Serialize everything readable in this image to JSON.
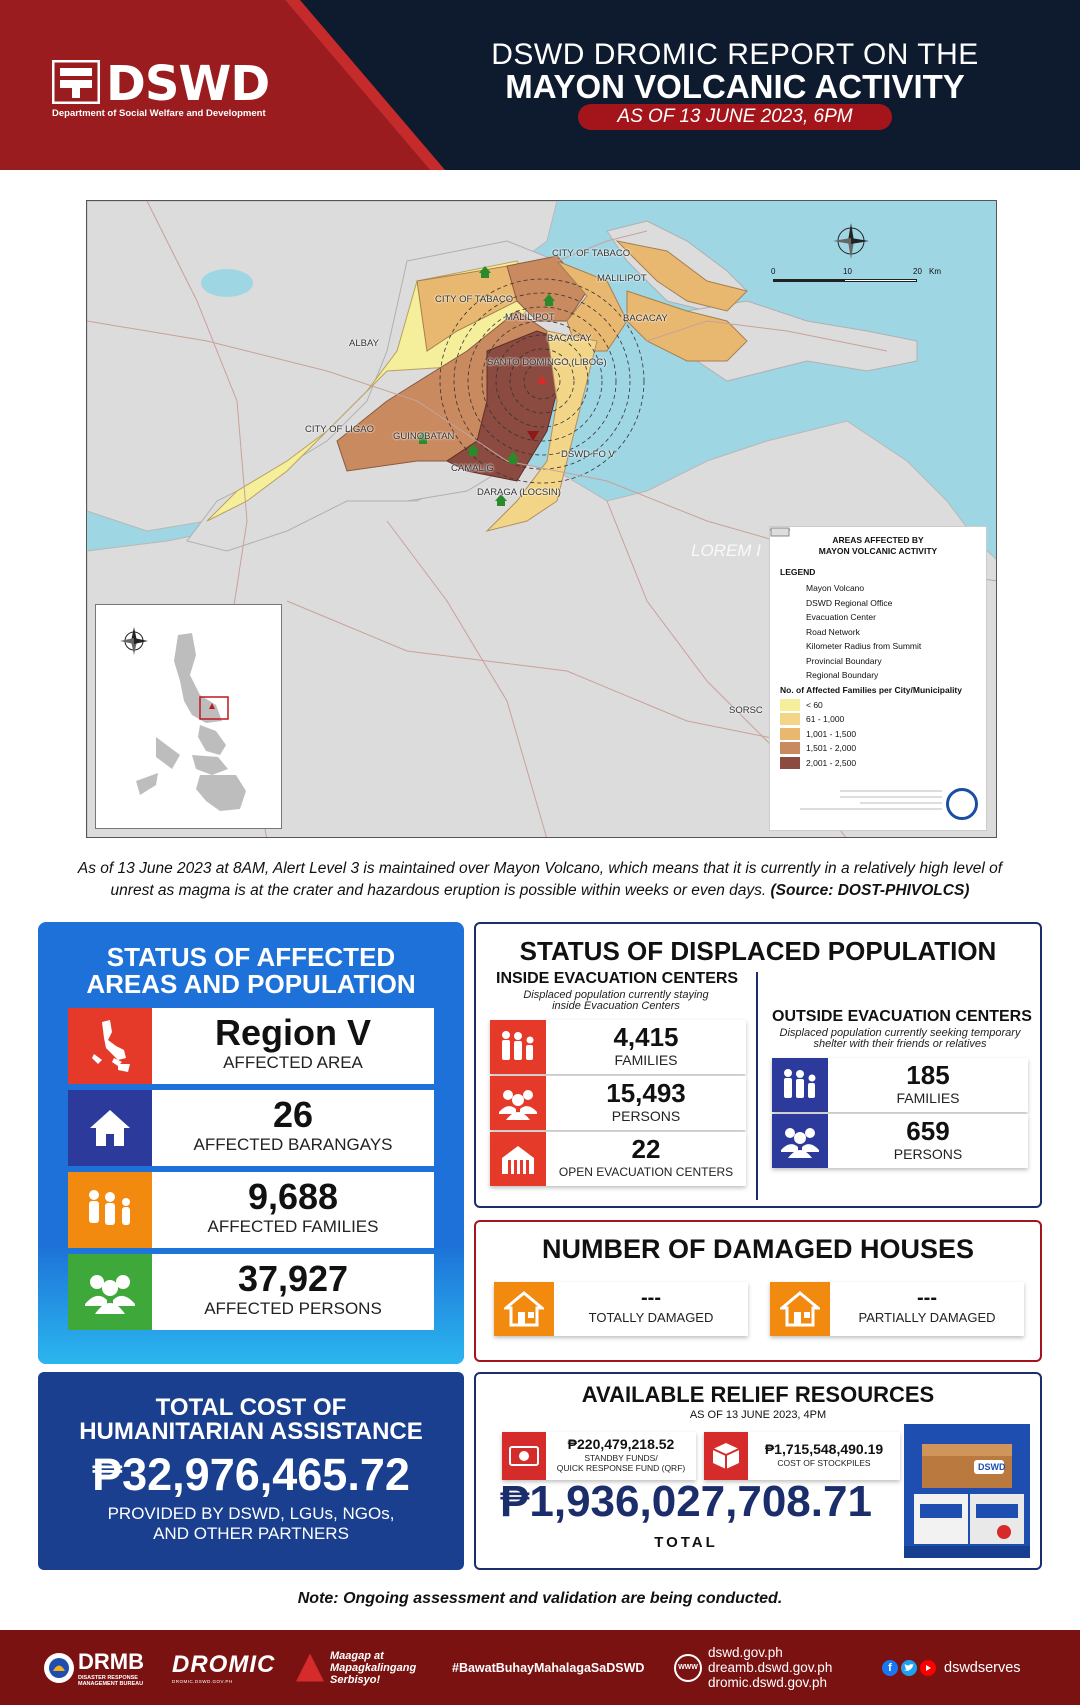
{
  "header": {
    "logo_text": "DSWD",
    "logo_subtitle": "Department of Social Welfare and Development",
    "title_line1": "DSWD DROMIC REPORT ON THE",
    "title_line2": "MAYON VOLCANIC ACTIVITY",
    "as_of": "AS OF 13 JUNE 2023, 6PM"
  },
  "map": {
    "place_labels": {
      "tabaco_north": "CITY OF TABACO",
      "malilipot_north": "MALILIPOT",
      "bacacay_east": "BACACAY",
      "tabaco": "CITY OF TABACO",
      "malilipot": "MALILIPOT",
      "bacacay": "BACACAY",
      "santo_domingo": "SANTO DOMINGO (LIBOG)",
      "albay": "ALBAY",
      "ligao": "CITY OF LIGAO",
      "guinobatan": "GUINOBATAN",
      "camalig": "CAMALIG",
      "daraga": "DARAGA (LOCSIN)",
      "dswd_fo": "DSWD FO V",
      "sorsogon": "SORSC",
      "watermark": "LOREM I"
    },
    "scale": {
      "ticks": [
        "0",
        "10",
        "20"
      ],
      "unit": "Km"
    },
    "legend": {
      "title_line1": "AREAS AFFECTED BY",
      "title_line2": "MAYON VOLCANIC ACTIVITY",
      "heading": "LEGEND",
      "items": [
        "Mayon Volcano",
        "DSWD Regional Office",
        "Evacuation Center",
        "Road Network",
        "Kilometer Radius from Summit",
        "Provincial Boundary",
        "Regional Boundary"
      ],
      "families_heading": "No. of Affected Families per City/Municipality",
      "ranges": [
        "< 60",
        "61 - 1,000",
        "1,001 - 1,500",
        "1,501 - 2,000",
        "2,001 - 2,500"
      ],
      "range_colors": [
        "#f5ee9a",
        "#f3d588",
        "#e9b870",
        "#c98a5f",
        "#8c4b40"
      ]
    }
  },
  "advisory": {
    "text": "As of 13 June 2023 at 8AM, Alert Level 3 is maintained over Mayon Volcano, which means that it is currently in a relatively high level of unrest as magma is at the crater and hazardous eruption is possible within weeks or even days.",
    "source": "(Source: DOST-PHIVOLCS)"
  },
  "affected": {
    "title_line1": "STATUS OF AFFECTED",
    "title_line2": "AREAS AND POPULATION",
    "rows": [
      {
        "value": "Region V",
        "label": "AFFECTED AREA",
        "icon": "philippines-map-icon",
        "color": "#e53a2a"
      },
      {
        "value": "26",
        "label": "AFFECTED BARANGAYS",
        "icon": "house-icon",
        "color": "#2c3a9c"
      },
      {
        "value": "9,688",
        "label": "AFFECTED FAMILIES",
        "icon": "family-icon",
        "color": "#f28a10"
      },
      {
        "value": "37,927",
        "label": "AFFECTED PERSONS",
        "icon": "persons-icon",
        "color": "#3fa83a"
      }
    ]
  },
  "displaced": {
    "title": "STATUS OF DISPLACED POPULATION",
    "inside": {
      "heading": "INSIDE EVACUATION CENTERS",
      "desc_line1": "Displaced population currently staying",
      "desc_line2": "inside Evacuation Centers",
      "stats": [
        {
          "value": "4,415",
          "label": "FAMILIES"
        },
        {
          "value": "15,493",
          "label": "PERSONS"
        },
        {
          "value": "22",
          "label": "OPEN EVACUATION CENTERS"
        }
      ]
    },
    "outside": {
      "heading": "OUTSIDE EVACUATION CENTERS",
      "desc_line1": "Displaced population currently seeking temporary",
      "desc_line2": "shelter with their friends or relatives",
      "stats": [
        {
          "value": "185",
          "label": "FAMILIES"
        },
        {
          "value": "659",
          "label": "PERSONS"
        }
      ]
    }
  },
  "damaged": {
    "title": "NUMBER OF DAMAGED HOUSES",
    "totally": {
      "value": "---",
      "label": "TOTALLY DAMAGED"
    },
    "partially": {
      "value": "---",
      "label": "PARTIALLY DAMAGED"
    }
  },
  "cost": {
    "title_line1": "TOTAL COST OF",
    "title_line2": "HUMANITARIAN ASSISTANCE",
    "value": "₱32,976,465.72",
    "sub_line1": "PROVIDED BY DSWD, LGUs, NGOs,",
    "sub_line2": "AND OTHER PARTNERS"
  },
  "relief": {
    "title": "AVAILABLE RELIEF RESOURCES",
    "as_of": "AS OF 13 JUNE 2023, 4PM",
    "standby": {
      "value": "₱220,479,218.52",
      "label_line1": "STANDBY FUNDS/",
      "label_line2": "QUICK RESPONSE FUND (QRF)"
    },
    "stockpile": {
      "value": "₱1,715,548,490.19",
      "label": "COST OF STOCKPILES"
    },
    "total": "₱1,936,027,708.71",
    "total_label": "TOTAL",
    "box_brand": "DSWD"
  },
  "note": "Note: Ongoing assessment and validation are being conducted.",
  "footer": {
    "drmb": "DRMB",
    "drmb_sub_line1": "DISASTER RESPONSE",
    "drmb_sub_line2": "MANAGEMENT BUREAU",
    "dromic": "DROMIC",
    "dromic_sub": "DROMIC.DSWD.GOV.PH",
    "tagline_line1": "Maagap at",
    "tagline_line2": "Mapagkalingang",
    "tagline_line3": "Serbisyo!",
    "hashtag": "#BawatBuhayMahalagaSaDSWD",
    "www": "WWW",
    "websites": [
      "dswd.gov.ph",
      "dreamb.dswd.gov.ph",
      "dromic.dswd.gov.ph"
    ],
    "social": "dswdserves"
  }
}
